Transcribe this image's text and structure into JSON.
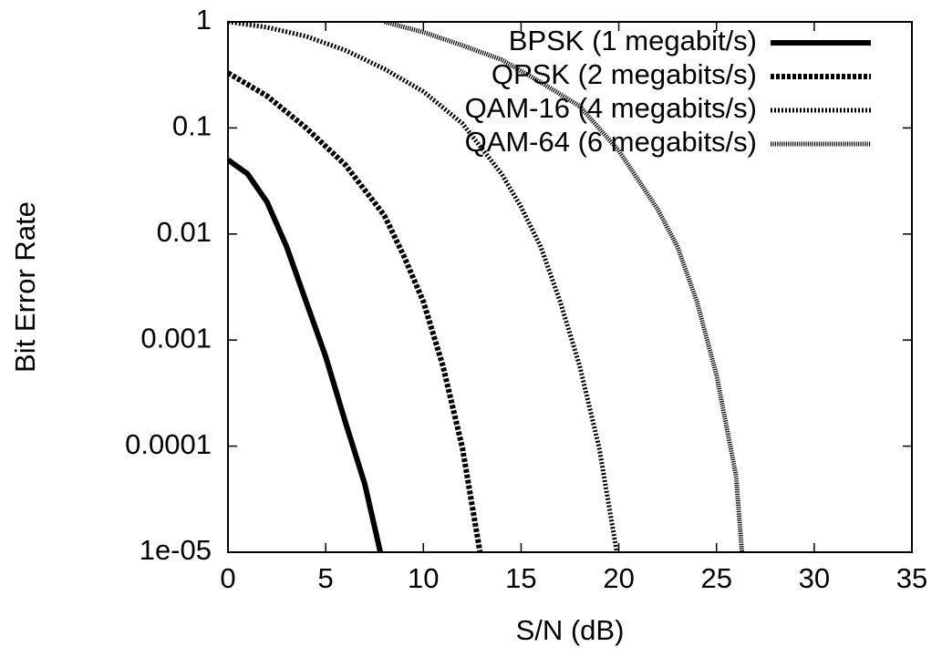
{
  "chart_data": {
    "type": "line",
    "xlabel": "S/N (dB)",
    "ylabel": "Bit Error Rate",
    "xlim": [
      0,
      35
    ],
    "xticks": [
      0,
      5,
      10,
      15,
      20,
      25,
      30,
      35
    ],
    "ylim": [
      1e-05,
      1
    ],
    "ylog": true,
    "yticks": [
      {
        "value": 1e-05,
        "label": "1e-05"
      },
      0.0001,
      0.001,
      0.01,
      0.1,
      1
    ],
    "legend": "top-right",
    "series": [
      {
        "name": "BPSK (1 megabit/s)",
        "color": "#000000",
        "dash": "solid",
        "x": [
          0,
          1,
          2,
          3,
          4,
          5,
          6,
          7,
          7.8
        ],
        "values": [
          0.05,
          0.037,
          0.02,
          0.0076,
          0.0023,
          0.0007,
          0.00017,
          4.4e-05,
          1e-05
        ]
      },
      {
        "name": "QPSK (2 megabits/s)",
        "color": "#000000",
        "dash": "dashed",
        "x": [
          0,
          2,
          4,
          6,
          8,
          9,
          10,
          11,
          12,
          12.9
        ],
        "values": [
          0.33,
          0.2,
          0.1,
          0.045,
          0.015,
          0.0062,
          0.0023,
          0.00057,
          9.6e-05,
          1e-05
        ]
      },
      {
        "name": "QAM-16 (4 megabits/s)",
        "color": "#000000",
        "dash": "dotted",
        "x": [
          0,
          2,
          4,
          6,
          8,
          10,
          12,
          14,
          15,
          16,
          17,
          18,
          19,
          19.9
        ],
        "values": [
          1,
          0.89,
          0.73,
          0.54,
          0.36,
          0.22,
          0.11,
          0.037,
          0.018,
          0.0076,
          0.0023,
          0.00057,
          9.6e-05,
          1e-05
        ]
      },
      {
        "name": "QAM-64 (6 megabits/s)",
        "color": "#000000",
        "dash": "fine-dotted",
        "x": [
          8,
          10,
          12,
          14,
          16,
          18,
          20,
          22,
          23,
          24,
          25,
          26,
          26.3
        ],
        "values": [
          1,
          0.8,
          0.6,
          0.44,
          0.27,
          0.16,
          0.061,
          0.017,
          0.0076,
          0.0023,
          0.00047,
          5.3e-05,
          1e-05
        ]
      }
    ]
  }
}
